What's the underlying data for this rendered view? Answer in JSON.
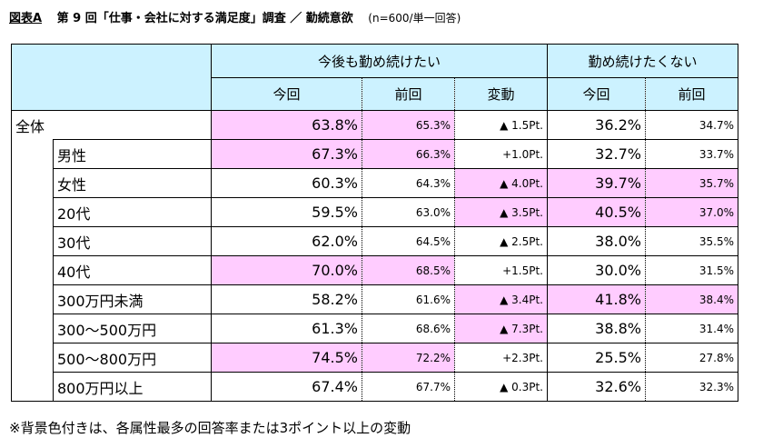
{
  "title": {
    "prefix": "図表A",
    "main": "第 9 回「仕事・会社に対する満足度」調査 ／ 勤続意欲",
    "note": "(n=600/単一回答)"
  },
  "footnote": "※背景色付きは、各属性最多の回答率または3ポイント以上の変動",
  "chart_data": {
    "type": "table",
    "group_headers": [
      "今後も勤め続けたい",
      "勤め続けたくない"
    ],
    "column_headers": [
      "今回",
      "前回",
      "変動",
      "今回",
      "前回"
    ],
    "highlight_color": "#ffccff",
    "header_color": "#ccf2ff",
    "rows": [
      {
        "label": "全体",
        "indent": false,
        "cells": [
          "63.8%",
          "65.3%",
          "▲ 1.5Pt.",
          "36.2%",
          "34.7%"
        ],
        "highlight": [
          true,
          true,
          false,
          false,
          false
        ]
      },
      {
        "label": "男性",
        "indent": true,
        "cells": [
          "67.3%",
          "66.3%",
          "+1.0Pt.",
          "32.7%",
          "33.7%"
        ],
        "highlight": [
          true,
          true,
          false,
          false,
          false
        ]
      },
      {
        "label": "女性",
        "indent": true,
        "cells": [
          "60.3%",
          "64.3%",
          "▲ 4.0Pt.",
          "39.7%",
          "35.7%"
        ],
        "highlight": [
          false,
          false,
          true,
          true,
          true
        ]
      },
      {
        "label": "20代",
        "indent": true,
        "cells": [
          "59.5%",
          "63.0%",
          "▲ 3.5Pt.",
          "40.5%",
          "37.0%"
        ],
        "highlight": [
          false,
          false,
          true,
          true,
          true
        ]
      },
      {
        "label": "30代",
        "indent": true,
        "cells": [
          "62.0%",
          "64.5%",
          "▲ 2.5Pt.",
          "38.0%",
          "35.5%"
        ],
        "highlight": [
          false,
          false,
          false,
          false,
          false
        ]
      },
      {
        "label": "40代",
        "indent": true,
        "cells": [
          "70.0%",
          "68.5%",
          "+1.5Pt.",
          "30.0%",
          "31.5%"
        ],
        "highlight": [
          true,
          true,
          false,
          false,
          false
        ]
      },
      {
        "label": "300万円未満",
        "indent": true,
        "cells": [
          "58.2%",
          "61.6%",
          "▲ 3.4Pt.",
          "41.8%",
          "38.4%"
        ],
        "highlight": [
          false,
          false,
          true,
          true,
          true
        ]
      },
      {
        "label": "300～500万円",
        "indent": true,
        "cells": [
          "61.3%",
          "68.6%",
          "▲ 7.3Pt.",
          "38.8%",
          "31.4%"
        ],
        "highlight": [
          false,
          false,
          true,
          false,
          false
        ]
      },
      {
        "label": "500～800万円",
        "indent": true,
        "cells": [
          "74.5%",
          "72.2%",
          "+2.3Pt.",
          "25.5%",
          "27.8%"
        ],
        "highlight": [
          true,
          true,
          false,
          false,
          false
        ]
      },
      {
        "label": "800万円以上",
        "indent": true,
        "cells": [
          "67.4%",
          "67.7%",
          "▲ 0.3Pt.",
          "32.6%",
          "32.3%"
        ],
        "highlight": [
          false,
          false,
          false,
          false,
          false
        ]
      }
    ]
  }
}
